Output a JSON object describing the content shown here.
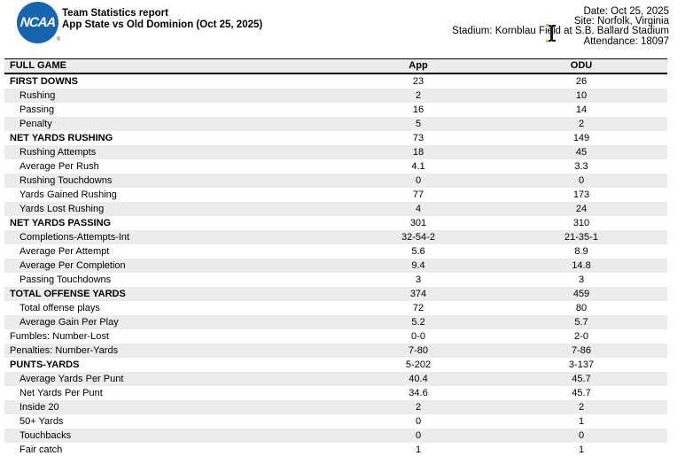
{
  "header": {
    "logo_text": "NCAA",
    "reg_mark": "®",
    "title_line1": "Team Statistics report",
    "title_line2": "App State vs Old Dominion (Oct 25, 2025)",
    "info_lines": [
      "Date: Oct 25, 2025",
      "Site: Norfolk, Virginia",
      "Stadium: Kornblau Field at S.B. Ballard Stadium",
      "Attendance: 18097"
    ]
  },
  "table": {
    "columns": [
      "FULL GAME",
      "App",
      "ODU"
    ],
    "rows": [
      {
        "label": "FIRST DOWNS",
        "app": "23",
        "odu": "26",
        "style": "bold"
      },
      {
        "label": "Rushing",
        "app": "2",
        "odu": "10",
        "style": "indent"
      },
      {
        "label": "Passing",
        "app": "16",
        "odu": "14",
        "style": "indent"
      },
      {
        "label": "Penalty",
        "app": "5",
        "odu": "2",
        "style": "indent"
      },
      {
        "label": "NET YARDS RUSHING",
        "app": "73",
        "odu": "149",
        "style": "bold"
      },
      {
        "label": "Rushing Attempts",
        "app": "18",
        "odu": "45",
        "style": "indent"
      },
      {
        "label": "Average Per Rush",
        "app": "4.1",
        "odu": "3.3",
        "style": "indent"
      },
      {
        "label": "Rushing Touchdowns",
        "app": "0",
        "odu": "0",
        "style": "indent"
      },
      {
        "label": "Yards Gained Rushing",
        "app": "77",
        "odu": "173",
        "style": "indent"
      },
      {
        "label": "Yards Lost Rushing",
        "app": "4",
        "odu": "24",
        "style": "indent"
      },
      {
        "label": "NET YARDS PASSING",
        "app": "301",
        "odu": "310",
        "style": "bold"
      },
      {
        "label": "Completions-Attempts-Int",
        "app": "32-54-2",
        "odu": "21-35-1",
        "style": "indent"
      },
      {
        "label": "Average Per Attempt",
        "app": "5.6",
        "odu": "8.9",
        "style": "indent"
      },
      {
        "label": "Average Per Completion",
        "app": "9.4",
        "odu": "14.8",
        "style": "indent"
      },
      {
        "label": "Passing Touchdowns",
        "app": "3",
        "odu": "3",
        "style": "indent"
      },
      {
        "label": "TOTAL OFFENSE YARDS",
        "app": "374",
        "odu": "459",
        "style": "bold"
      },
      {
        "label": "Total offense plays",
        "app": "72",
        "odu": "80",
        "style": "indent"
      },
      {
        "label": "Average Gain Per Play",
        "app": "5.2",
        "odu": "5.7",
        "style": "indent"
      },
      {
        "label": "Fumbles: Number-Lost",
        "app": "0-0",
        "odu": "2-0",
        "style": "plain"
      },
      {
        "label": "Penalties: Number-Yards",
        "app": "7-80",
        "odu": "7-86",
        "style": "plain"
      },
      {
        "label": "PUNTS-YARDS",
        "app": "5-202",
        "odu": "3-137",
        "style": "bold"
      },
      {
        "label": "Average Yards Per Punt",
        "app": "40.4",
        "odu": "45.7",
        "style": "indent"
      },
      {
        "label": "Net Yards Per Punt",
        "app": "34.6",
        "odu": "45.7",
        "style": "indent"
      },
      {
        "label": "Inside 20",
        "app": "2",
        "odu": "2",
        "style": "indent"
      },
      {
        "label": "50+ Yards",
        "app": "0",
        "odu": "1",
        "style": "indent"
      },
      {
        "label": "Touchbacks",
        "app": "0",
        "odu": "0",
        "style": "indent"
      },
      {
        "label": "Fair catch",
        "app": "1",
        "odu": "1",
        "style": "indent"
      }
    ]
  },
  "colors": {
    "logo_blue": "#1565b1",
    "row_shade": "#ececec",
    "border_black": "#000000"
  }
}
